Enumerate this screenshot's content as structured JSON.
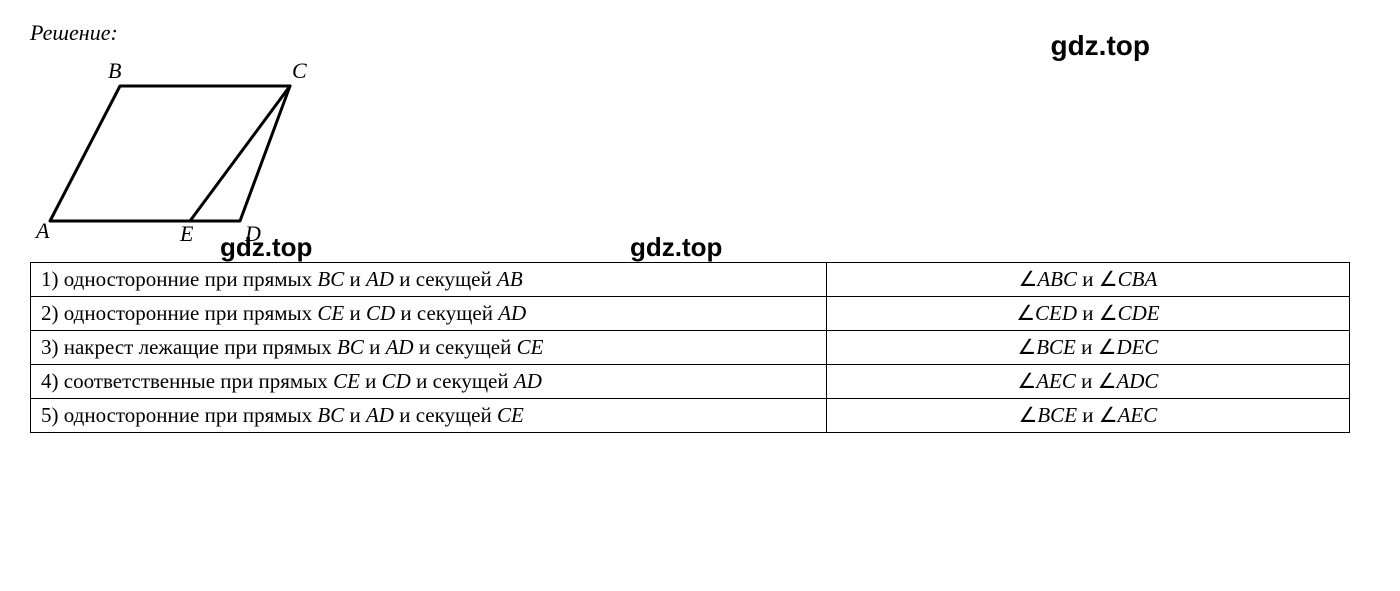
{
  "heading": "Решение:",
  "watermark": "gdz.top",
  "figure": {
    "labels": {
      "A": "A",
      "B": "B",
      "C": "C",
      "D": "D",
      "E": "E"
    },
    "stroke": "#000000",
    "stroke_width": 3,
    "font_size": 22,
    "font_style": "italic"
  },
  "table": {
    "border_color": "#000000",
    "font_size": 21,
    "rows": [
      {
        "num": "1)",
        "type": "односторонние при прямых",
        "pair1": "BC",
        "and1": "и",
        "pair2": "AD",
        "sek_word": "и секущей",
        "sek": "AB",
        "ang1": "ABC",
        "ang_and": "и",
        "ang2": "CBA"
      },
      {
        "num": "2)",
        "type": "односторонние при прямых",
        "pair1": "CE",
        "and1": "и",
        "pair2": "CD",
        "sek_word": "и секущей",
        "sek": "AD",
        "ang1": "CED",
        "ang_and": "и",
        "ang2": "CDE"
      },
      {
        "num": "3)",
        "type": "накрест лежащие при прямых",
        "pair1": "BC",
        "and1": "и",
        "pair2": "AD",
        "sek_word": "и секущей",
        "sek": "CE",
        "ang1": "BCE",
        "ang_and": "и",
        "ang2": "DEC"
      },
      {
        "num": "4)",
        "type": "соответственные при прямых",
        "pair1": "CE",
        "and1": "и",
        "pair2": "CD",
        "sek_word": "и секущей",
        "sek": "AD",
        "ang1": "AEC",
        "ang_and": "и",
        "ang2": "ADC"
      },
      {
        "num": "5)",
        "type": "односторонние при прямых",
        "pair1": "BC",
        "and1": "и",
        "pair2": "AD",
        "sek_word": "и секущей",
        "sek": "CE",
        "ang1": "BCE",
        "ang_and": "и",
        "ang2": "AEC"
      }
    ]
  }
}
